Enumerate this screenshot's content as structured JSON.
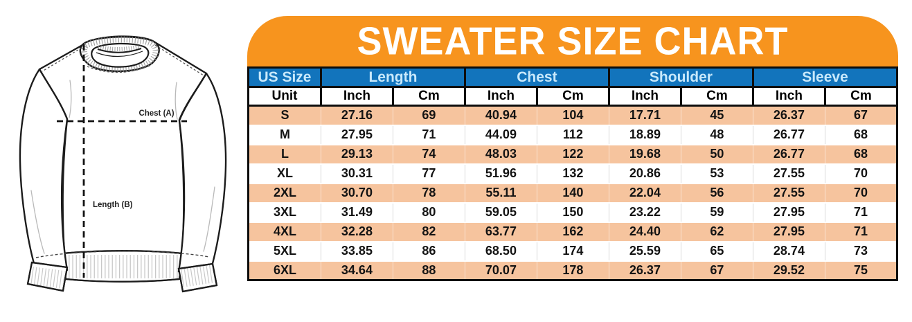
{
  "chart_data": {
    "type": "table",
    "title": "SWEATER SIZE CHART",
    "column_groups": [
      {
        "label": "US Size",
        "span": 1
      },
      {
        "label": "Length",
        "span": 2
      },
      {
        "label": "Chest",
        "span": 2
      },
      {
        "label": "Shoulder",
        "span": 2
      },
      {
        "label": "Sleeve",
        "span": 2
      }
    ],
    "unit_row": [
      "Unit",
      "Inch",
      "Cm",
      "Inch",
      "Cm",
      "Inch",
      "Cm",
      "Inch",
      "Cm"
    ],
    "rows": [
      [
        "S",
        "27.16",
        "69",
        "40.94",
        "104",
        "17.71",
        "45",
        "26.37",
        "67"
      ],
      [
        "M",
        "27.95",
        "71",
        "44.09",
        "112",
        "18.89",
        "48",
        "26.77",
        "68"
      ],
      [
        "L",
        "29.13",
        "74",
        "48.03",
        "122",
        "19.68",
        "50",
        "26.77",
        "68"
      ],
      [
        "XL",
        "30.31",
        "77",
        "51.96",
        "132",
        "20.86",
        "53",
        "27.55",
        "70"
      ],
      [
        "2XL",
        "30.70",
        "78",
        "55.11",
        "140",
        "22.04",
        "56",
        "27.55",
        "70"
      ],
      [
        "3XL",
        "31.49",
        "80",
        "59.05",
        "150",
        "23.22",
        "59",
        "27.95",
        "71"
      ],
      [
        "4XL",
        "32.28",
        "82",
        "63.77",
        "162",
        "24.40",
        "62",
        "27.95",
        "71"
      ],
      [
        "5XL",
        "33.85",
        "86",
        "68.50",
        "174",
        "25.59",
        "65",
        "28.74",
        "73"
      ],
      [
        "6XL",
        "34.64",
        "88",
        "70.07",
        "178",
        "26.37",
        "67",
        "29.52",
        "75"
      ]
    ]
  },
  "diagram": {
    "chest_label": "Chest (A)",
    "length_label": "Length (B)"
  },
  "colors": {
    "banner_orange": "#F7941E",
    "header_blue": "#1274BC",
    "header_text_light_blue": "#C9E9FB",
    "row_peach": "#F6C49E"
  }
}
